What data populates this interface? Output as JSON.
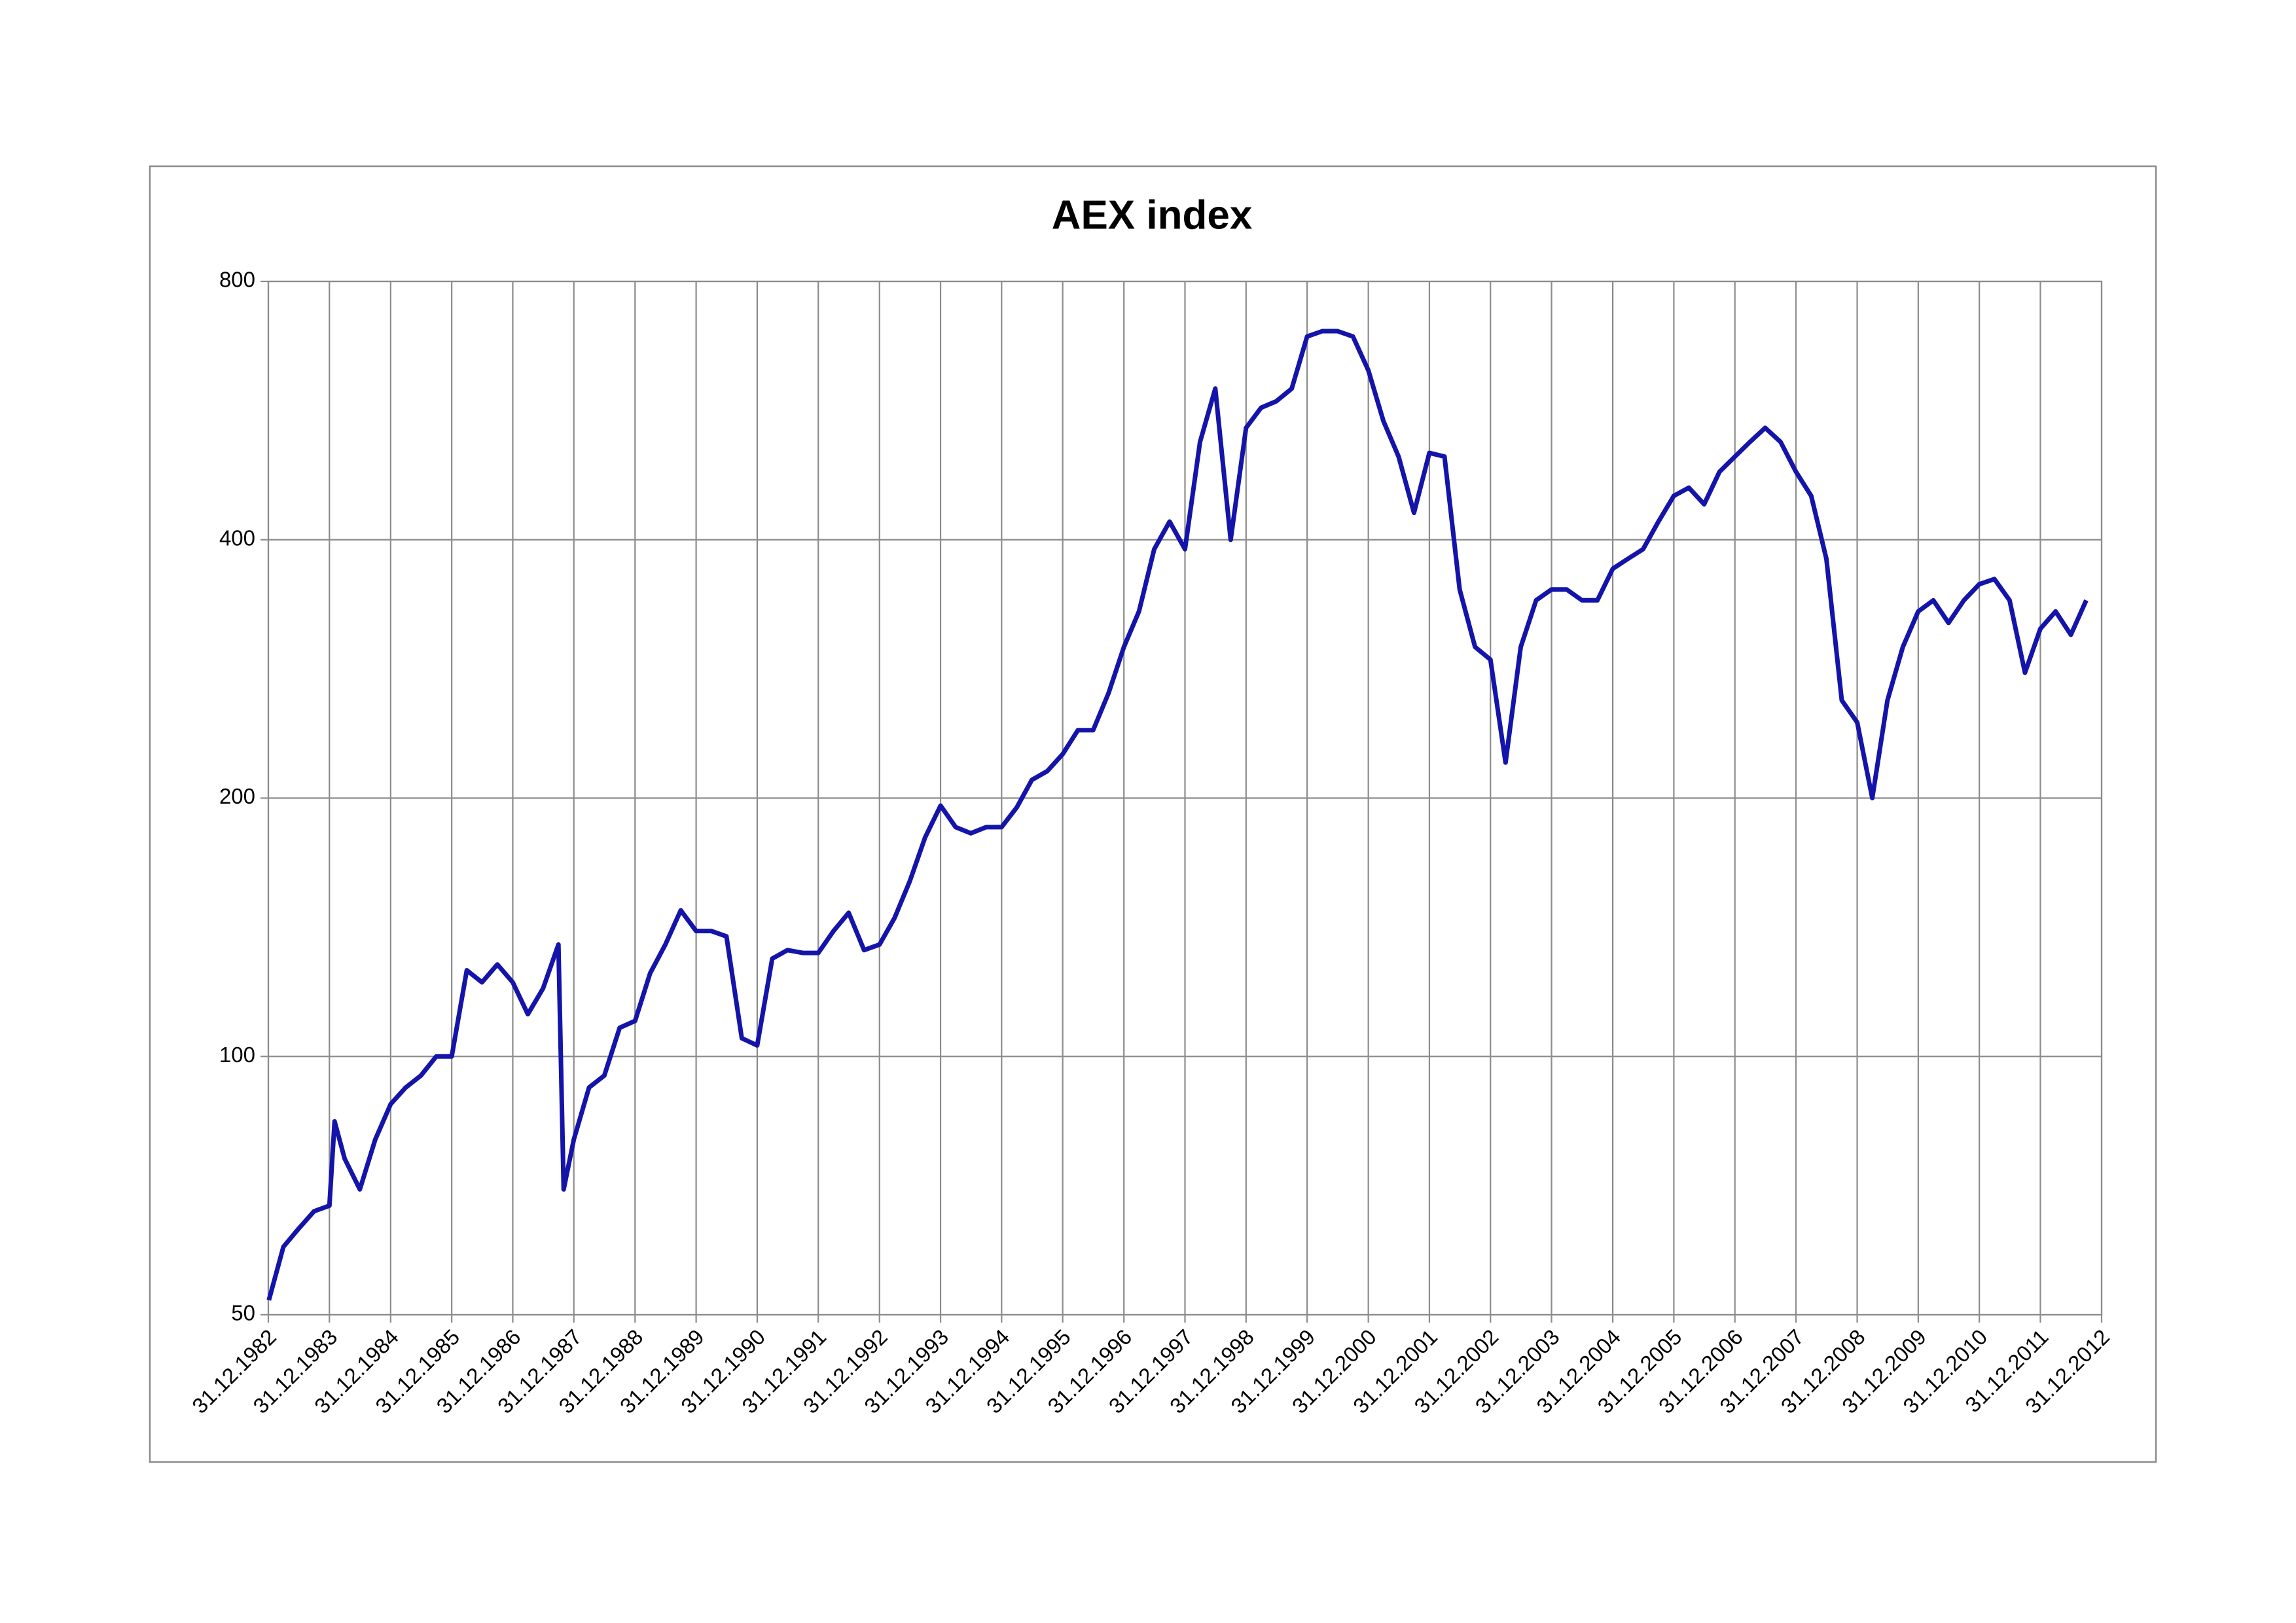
{
  "chart_data": {
    "type": "line",
    "title": "AEX index",
    "color": "#1414aa",
    "ylog": true,
    "grid": true,
    "xlim": [
      "1982-12-31",
      "2012-12-31"
    ],
    "xticks": [
      {
        "value": "1982-12-31",
        "label": "31.12.1982"
      },
      {
        "value": "1983-12-31",
        "label": "31.12.1983"
      },
      {
        "value": "1984-12-31",
        "label": "31.12.1984"
      },
      {
        "value": "1985-12-31",
        "label": "31.12.1985"
      },
      {
        "value": "1986-12-31",
        "label": "31.12.1986"
      },
      {
        "value": "1987-12-31",
        "label": "31.12.1987"
      },
      {
        "value": "1988-12-31",
        "label": "31.12.1988"
      },
      {
        "value": "1989-12-31",
        "label": "31.12.1989"
      },
      {
        "value": "1990-12-31",
        "label": "31.12.1990"
      },
      {
        "value": "1991-12-31",
        "label": "31.12.1991"
      },
      {
        "value": "1992-12-31",
        "label": "31.12.1992"
      },
      {
        "value": "1993-12-31",
        "label": "31.12.1993"
      },
      {
        "value": "1994-12-31",
        "label": "31.12.1994"
      },
      {
        "value": "1995-12-31",
        "label": "31.12.1995"
      },
      {
        "value": "1996-12-31",
        "label": "31.12.1996"
      },
      {
        "value": "1997-12-31",
        "label": "31.12.1997"
      },
      {
        "value": "1998-12-31",
        "label": "31.12.1998"
      },
      {
        "value": "1999-12-31",
        "label": "31.12.1999"
      },
      {
        "value": "2000-12-31",
        "label": "31.12.2000"
      },
      {
        "value": "2001-12-31",
        "label": "31.12.2001"
      },
      {
        "value": "2002-12-31",
        "label": "31.12.2002"
      },
      {
        "value": "2003-12-31",
        "label": "31.12.2003"
      },
      {
        "value": "2004-12-31",
        "label": "31.12.2004"
      },
      {
        "value": "2005-12-31",
        "label": "31.12.2005"
      },
      {
        "value": "2006-12-31",
        "label": "31.12.2006"
      },
      {
        "value": "2007-12-31",
        "label": "31.12.2007"
      },
      {
        "value": "2008-12-31",
        "label": "31.12.2008"
      },
      {
        "value": "2009-12-31",
        "label": "31.12.2009"
      },
      {
        "value": "2010-12-31",
        "label": "31.12.2010"
      },
      {
        "value": "2011-12-31",
        "label": "31.12.2011"
      },
      {
        "value": "2012-12-31",
        "label": "31.12.2012"
      }
    ],
    "ylim": [
      50,
      800
    ],
    "yticks": [
      50,
      100,
      200,
      400,
      800
    ],
    "x": [
      "1983-01-03",
      "1983-03-31",
      "1983-06-30",
      "1983-09-30",
      "1983-12-31",
      "1984-01-31",
      "1984-03-31",
      "1984-06-30",
      "1984-09-30",
      "1984-12-31",
      "1985-03-31",
      "1985-06-30",
      "1985-09-30",
      "1985-12-31",
      "1986-03-31",
      "1986-06-30",
      "1986-09-30",
      "1986-12-31",
      "1987-03-31",
      "1987-06-30",
      "1987-09-30",
      "1987-10-31",
      "1987-12-31",
      "1988-03-31",
      "1988-06-30",
      "1988-09-30",
      "1988-12-31",
      "1989-03-31",
      "1989-06-30",
      "1989-09-30",
      "1989-12-31",
      "1990-03-31",
      "1990-06-30",
      "1990-09-30",
      "1990-12-31",
      "1991-03-31",
      "1991-06-30",
      "1991-09-30",
      "1991-12-31",
      "1992-03-31",
      "1992-06-30",
      "1992-09-30",
      "1992-12-31",
      "1993-03-31",
      "1993-06-30",
      "1993-09-30",
      "1993-12-31",
      "1994-03-31",
      "1994-06-30",
      "1994-09-30",
      "1994-12-31",
      "1995-03-31",
      "1995-06-30",
      "1995-09-30",
      "1995-12-31",
      "1996-03-31",
      "1996-06-30",
      "1996-09-30",
      "1996-12-31",
      "1997-03-31",
      "1997-06-30",
      "1997-09-30",
      "1997-12-31",
      "1998-03-31",
      "1998-06-30",
      "1998-09-30",
      "1998-12-31",
      "1999-03-31",
      "1999-06-30",
      "1999-09-30",
      "1999-12-31",
      "2000-03-31",
      "2000-06-30",
      "2000-09-30",
      "2000-12-31",
      "2001-03-31",
      "2001-06-30",
      "2001-09-30",
      "2001-12-31",
      "2002-03-31",
      "2002-06-30",
      "2002-09-30",
      "2002-12-31",
      "2003-03-31",
      "2003-06-30",
      "2003-09-30",
      "2003-12-31",
      "2004-03-31",
      "2004-06-30",
      "2004-09-30",
      "2004-12-31",
      "2005-03-31",
      "2005-06-30",
      "2005-09-30",
      "2005-12-31",
      "2006-03-31",
      "2006-06-30",
      "2006-09-30",
      "2006-12-31",
      "2007-03-31",
      "2007-06-30",
      "2007-09-30",
      "2007-12-31",
      "2008-03-31",
      "2008-06-30",
      "2008-09-30",
      "2008-12-31",
      "2009-03-31",
      "2009-06-30",
      "2009-09-30",
      "2009-12-31",
      "2010-03-31",
      "2010-06-30",
      "2010-09-30",
      "2010-12-31",
      "2011-03-31",
      "2011-06-30",
      "2011-09-30",
      "2011-12-31",
      "2012-03-31",
      "2012-06-30",
      "2012-09-30"
    ],
    "values": [
      52,
      60,
      63,
      66,
      67,
      84,
      76,
      70,
      80,
      88,
      92,
      95,
      100,
      100,
      126,
      122,
      128,
      122,
      112,
      120,
      135,
      70,
      80,
      92,
      95,
      108,
      110,
      125,
      135,
      148,
      140,
      140,
      138,
      105,
      103,
      130,
      133,
      132,
      132,
      140,
      147,
      133,
      135,
      145,
      160,
      180,
      196,
      185,
      182,
      185,
      185,
      195,
      210,
      215,
      225,
      240,
      240,
      265,
      300,
      330,
      390,
      420,
      390,
      520,
      600,
      400,
      540,
      570,
      580,
      600,
      690,
      700,
      700,
      690,
      630,
      550,
      500,
      430,
      505,
      500,
      350,
      300,
      290,
      220,
      300,
      340,
      350,
      350,
      340,
      340,
      370,
      380,
      390,
      420,
      450,
      460,
      440,
      480,
      500,
      520,
      540,
      520,
      480,
      450,
      380,
      260,
      245,
      200,
      260,
      300,
      330,
      340,
      320,
      340,
      355,
      360,
      340,
      280,
      315,
      330,
      310,
      340
    ]
  }
}
